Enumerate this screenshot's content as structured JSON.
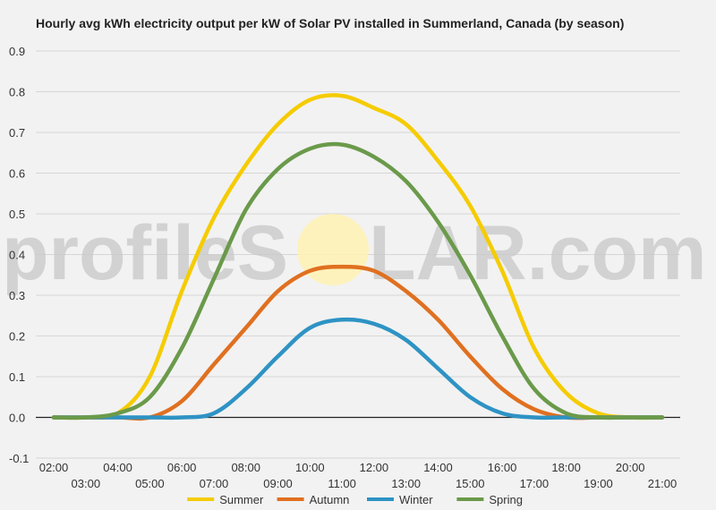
{
  "watermark": {
    "left_text": "profileS",
    "right_text": "LAR.com"
  },
  "chart_data": {
    "type": "line",
    "title": "Hourly avg kWh electricity output per kW of Solar PV installed in Summerland, Canada (by season)",
    "xlabel": "",
    "ylabel": "",
    "x": [
      "02:00",
      "03:00",
      "04:00",
      "05:00",
      "06:00",
      "07:00",
      "08:00",
      "09:00",
      "10:00",
      "11:00",
      "12:00",
      "13:00",
      "14:00",
      "15:00",
      "16:00",
      "17:00",
      "18:00",
      "19:00",
      "20:00",
      "21:00"
    ],
    "ylim": [
      -0.1,
      0.9
    ],
    "yticks": [
      -0.1,
      0.0,
      0.1,
      0.2,
      0.3,
      0.4,
      0.5,
      0.6,
      0.7,
      0.8,
      0.9
    ],
    "grid": true,
    "legend_position": "bottom",
    "series": [
      {
        "name": "Summer",
        "color": "#f5cc00",
        "values": [
          0,
          0,
          0.01,
          0.1,
          0.31,
          0.49,
          0.62,
          0.72,
          0.78,
          0.79,
          0.76,
          0.72,
          0.63,
          0.52,
          0.36,
          0.17,
          0.06,
          0.01,
          0,
          0
        ]
      },
      {
        "name": "Autumn",
        "color": "#e07020",
        "values": [
          0,
          0,
          0,
          0,
          0.04,
          0.13,
          0.22,
          0.31,
          0.36,
          0.37,
          0.36,
          0.31,
          0.24,
          0.15,
          0.07,
          0.02,
          0,
          0,
          0,
          0
        ]
      },
      {
        "name": "Winter",
        "color": "#2e93c4",
        "values": [
          0,
          0,
          0,
          0,
          0,
          0.01,
          0.07,
          0.15,
          0.22,
          0.24,
          0.23,
          0.19,
          0.12,
          0.05,
          0.01,
          0,
          0,
          0,
          0,
          0
        ]
      },
      {
        "name": "Spring",
        "color": "#6a9a4a",
        "values": [
          0,
          0,
          0.01,
          0.05,
          0.17,
          0.34,
          0.51,
          0.61,
          0.66,
          0.67,
          0.64,
          0.58,
          0.48,
          0.35,
          0.2,
          0.07,
          0.01,
          0,
          0,
          0
        ]
      }
    ]
  }
}
